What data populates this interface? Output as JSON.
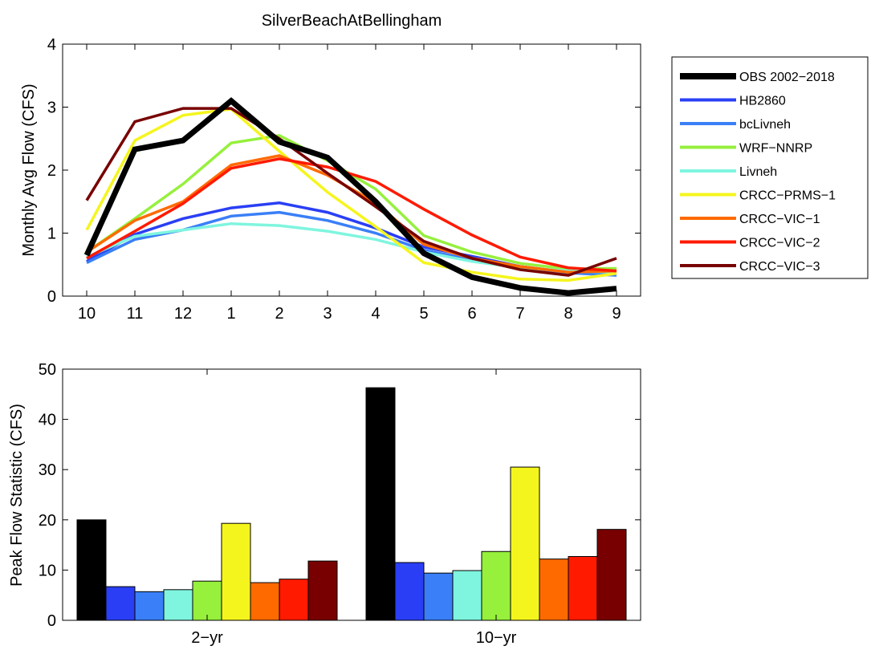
{
  "chart_data": [
    {
      "type": "line",
      "title": "SilverBeachAtBellingham",
      "xlabel": "",
      "ylabel": "Monthly Avg Flow (CFS)",
      "categories": [
        "10",
        "11",
        "12",
        "1",
        "2",
        "3",
        "4",
        "5",
        "6",
        "7",
        "8",
        "9"
      ],
      "ylim": [
        0,
        4
      ],
      "yticks": [
        "0",
        "1",
        "2",
        "3",
        "4"
      ],
      "grid": false,
      "legend": "outside-right",
      "series": [
        {
          "name": "OBS 2002−2018",
          "color": "#000000",
          "values": [
            0.65,
            2.33,
            2.47,
            3.1,
            2.45,
            2.2,
            1.5,
            0.68,
            0.3,
            0.13,
            0.05,
            0.12
          ]
        },
        {
          "name": "HB2860",
          "color": "#2a3ff5",
          "values": [
            0.55,
            0.98,
            1.23,
            1.4,
            1.48,
            1.33,
            1.08,
            0.78,
            0.63,
            0.47,
            0.38,
            0.36
          ]
        },
        {
          "name": "bcLivneh",
          "color": "#3a7ff7",
          "values": [
            0.53,
            0.9,
            1.05,
            1.27,
            1.33,
            1.2,
            1.0,
            0.73,
            0.58,
            0.45,
            0.37,
            0.33
          ]
        },
        {
          "name": "WRF−NNRP",
          "color": "#96f03c",
          "values": [
            0.7,
            1.23,
            1.78,
            2.43,
            2.55,
            2.15,
            1.7,
            0.96,
            0.7,
            0.52,
            0.43,
            0.44
          ]
        },
        {
          "name": "Livneh",
          "color": "#7ff5df",
          "values": [
            0.62,
            0.95,
            1.05,
            1.15,
            1.12,
            1.03,
            0.9,
            0.7,
            0.55,
            0.45,
            0.4,
            0.38
          ]
        },
        {
          "name": "CRCC−PRMS−1",
          "color": "#f5f51e",
          "values": [
            1.05,
            2.47,
            2.87,
            2.97,
            2.3,
            1.65,
            1.1,
            0.53,
            0.38,
            0.27,
            0.25,
            0.36
          ]
        },
        {
          "name": "CRCC−VIC−1",
          "color": "#ff6a00",
          "values": [
            0.7,
            1.2,
            1.5,
            2.08,
            2.23,
            1.92,
            1.48,
            0.82,
            0.6,
            0.47,
            0.38,
            0.4
          ]
        },
        {
          "name": "CRCC−VIC−2",
          "color": "#ff1a00",
          "values": [
            0.6,
            1.03,
            1.47,
            2.03,
            2.18,
            2.05,
            1.82,
            1.38,
            0.97,
            0.62,
            0.45,
            0.4
          ]
        },
        {
          "name": "CRCC−VIC−3",
          "color": "#780000",
          "values": [
            1.52,
            2.77,
            2.98,
            2.98,
            2.5,
            1.95,
            1.42,
            0.87,
            0.6,
            0.42,
            0.33,
            0.6
          ]
        }
      ]
    },
    {
      "type": "bar",
      "title": "",
      "xlabel": "",
      "ylabel": "Peak Flow Statistic (CFS)",
      "categories": [
        "2−yr",
        "10−yr"
      ],
      "ylim": [
        0,
        50
      ],
      "yticks": [
        "0",
        "10",
        "20",
        "30",
        "40",
        "50"
      ],
      "grid": false,
      "series": [
        {
          "name": "OBS 2002−2018",
          "color": "#000000",
          "values": [
            20.0,
            46.3
          ]
        },
        {
          "name": "HB2860",
          "color": "#2a3ff5",
          "values": [
            6.7,
            11.5
          ]
        },
        {
          "name": "bcLivneh",
          "color": "#3a7ff7",
          "values": [
            5.7,
            9.4
          ]
        },
        {
          "name": "Livneh",
          "color": "#7ff5df",
          "values": [
            6.1,
            9.9
          ]
        },
        {
          "name": "WRF−NNRP",
          "color": "#96f03c",
          "values": [
            7.8,
            13.7
          ]
        },
        {
          "name": "CRCC−PRMS−1",
          "color": "#f5f51e",
          "values": [
            19.3,
            30.5
          ]
        },
        {
          "name": "CRCC−VIC−1",
          "color": "#ff6a00",
          "values": [
            7.5,
            12.2
          ]
        },
        {
          "name": "CRCC−VIC−2",
          "color": "#ff1a00",
          "values": [
            8.2,
            12.7
          ]
        },
        {
          "name": "CRCC−VIC−3",
          "color": "#780000",
          "values": [
            11.8,
            18.1
          ]
        }
      ]
    }
  ]
}
